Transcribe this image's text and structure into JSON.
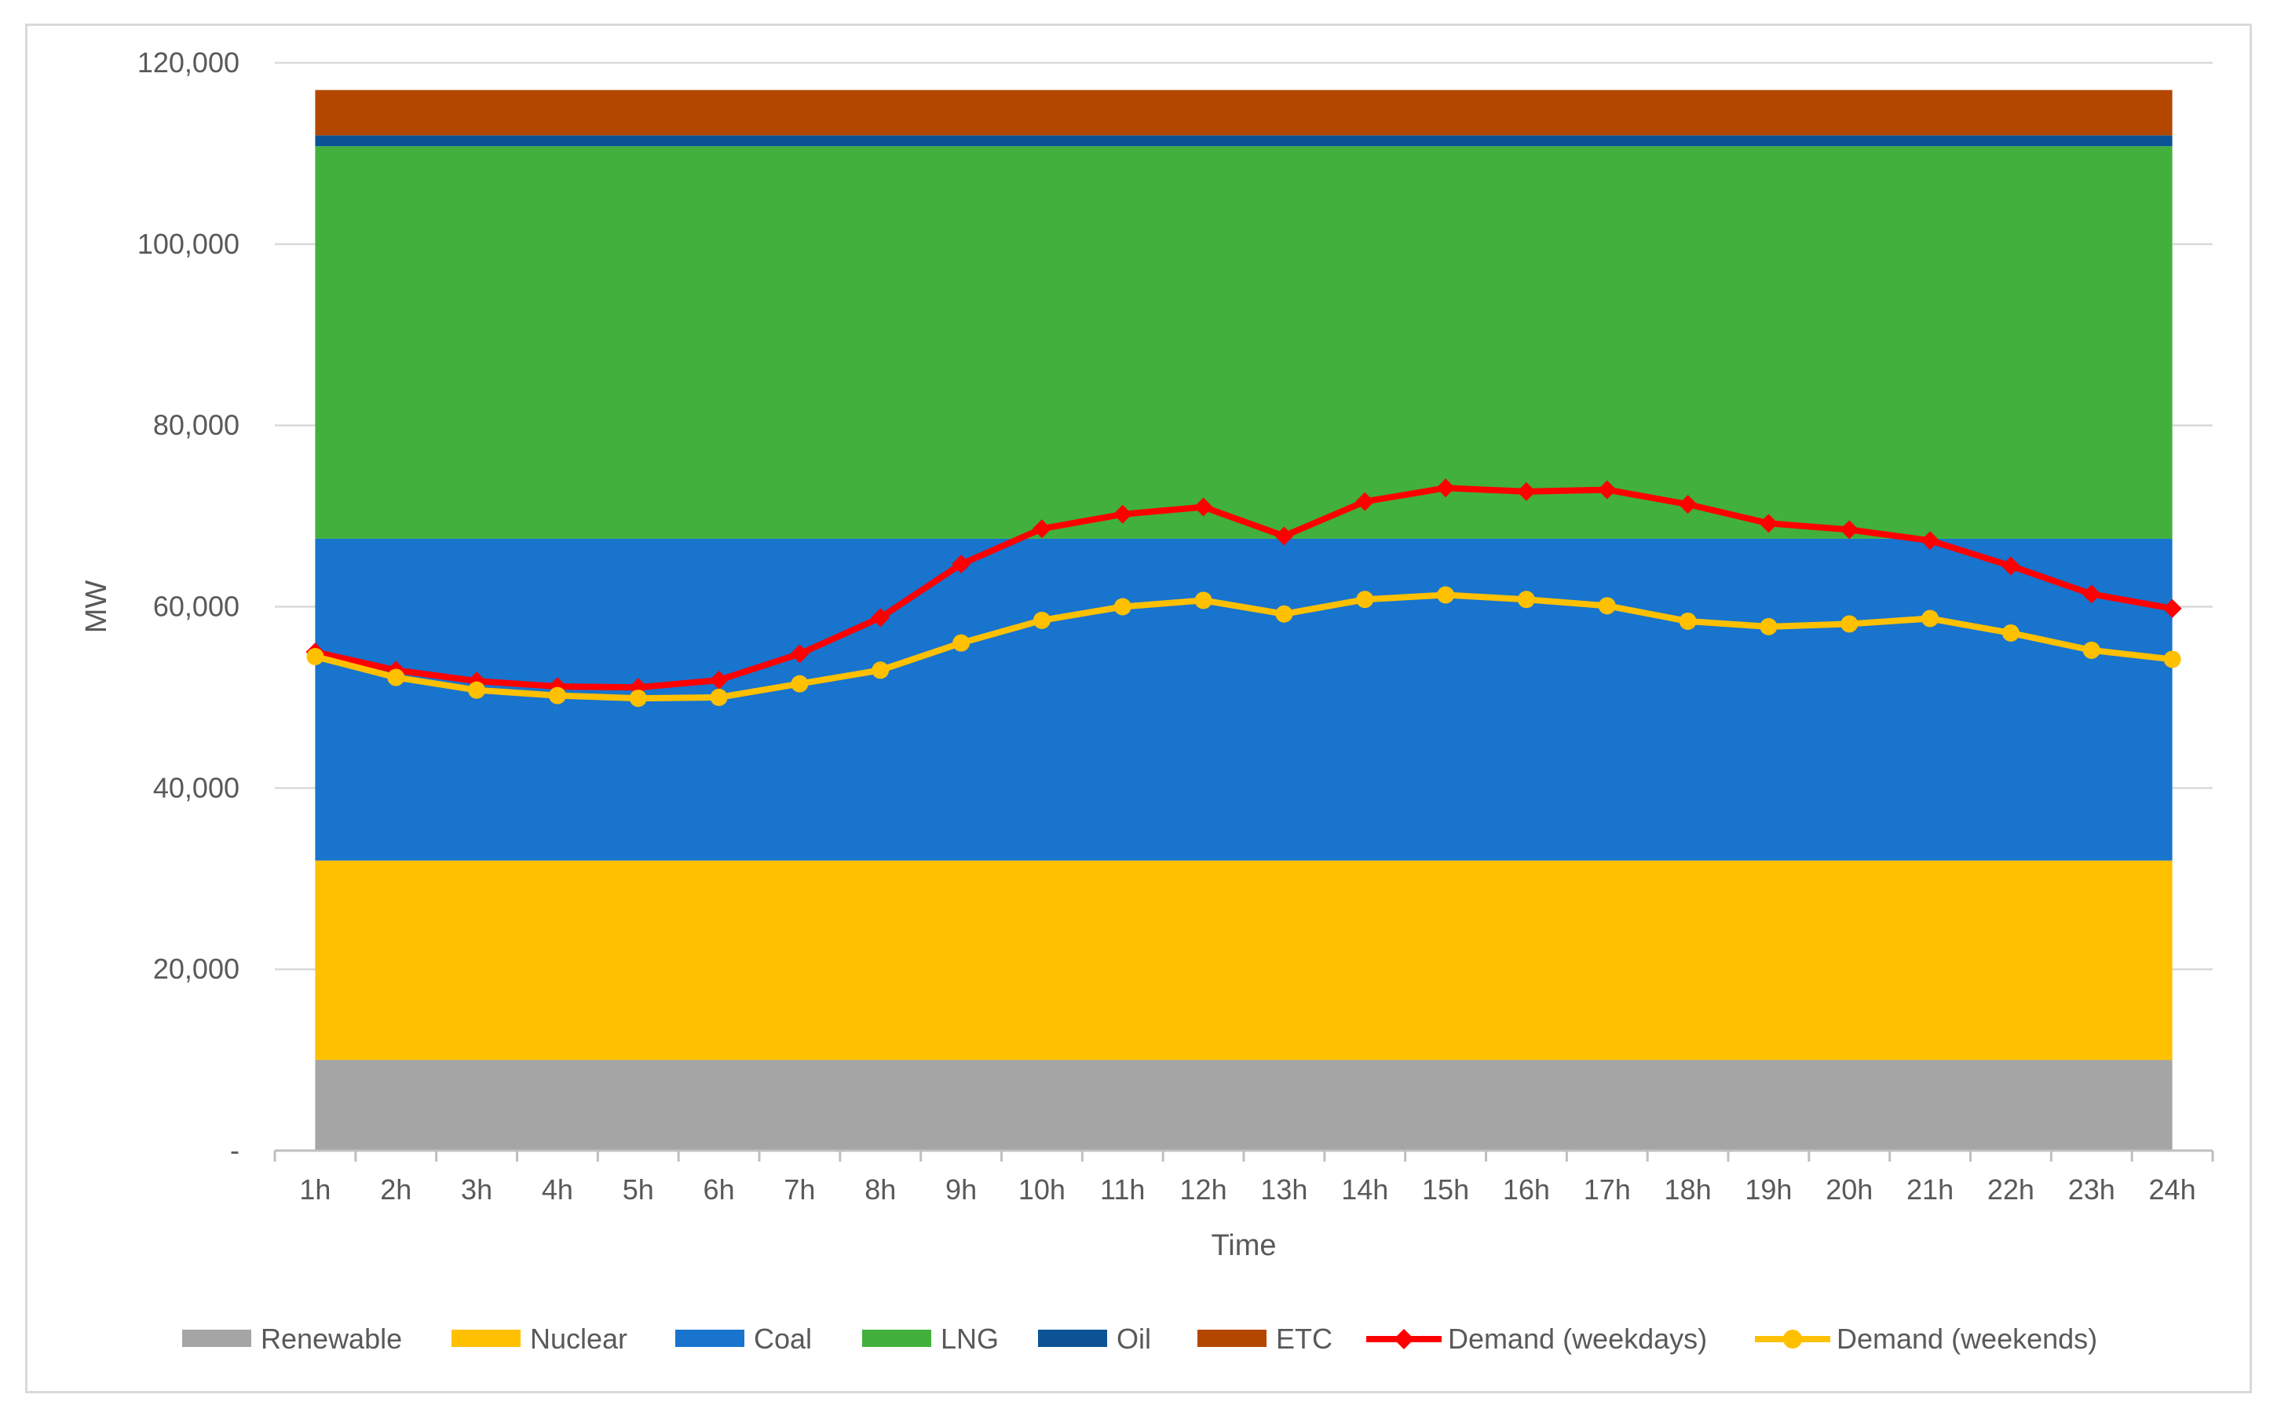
{
  "chart_data": {
    "type": "area",
    "title": "",
    "xlabel": "Time",
    "ylabel": "MW",
    "ylim": [
      0,
      120000
    ],
    "yticks": [
      {
        "value": 0,
        "label": "-"
      },
      {
        "value": 20000,
        "label": "20,000"
      },
      {
        "value": 40000,
        "label": "40,000"
      },
      {
        "value": 60000,
        "label": "60,000"
      },
      {
        "value": 80000,
        "label": "80,000"
      },
      {
        "value": 100000,
        "label": "100,000"
      },
      {
        "value": 120000,
        "label": "120,000"
      }
    ],
    "grid": true,
    "legend_position": "bottom",
    "categories": [
      "1h",
      "2h",
      "3h",
      "4h",
      "5h",
      "6h",
      "7h",
      "8h",
      "9h",
      "10h",
      "11h",
      "12h",
      "13h",
      "14h",
      "15h",
      "16h",
      "17h",
      "18h",
      "19h",
      "20h",
      "21h",
      "22h",
      "23h",
      "24h"
    ],
    "stacked_areas": [
      {
        "name": "Renewable",
        "value": 10000,
        "color": "#a5a5a5"
      },
      {
        "name": "Nuclear",
        "value": 22000,
        "color": "#ffc000"
      },
      {
        "name": "Coal",
        "value": 35500,
        "color": "#1874cd"
      },
      {
        "name": "LNG",
        "value": 43300,
        "color": "#41b03c"
      },
      {
        "name": "Oil",
        "value": 1200,
        "color": "#0b5394"
      },
      {
        "name": "ETC",
        "value": 5000,
        "color": "#b34700"
      }
    ],
    "series": [
      {
        "name": "Demand (weekdays)",
        "color": "#ff0000",
        "marker": "diamond",
        "values": [
          55000,
          53000,
          51800,
          51200,
          51100,
          51900,
          54800,
          58800,
          64700,
          68600,
          70200,
          71000,
          67800,
          71600,
          73100,
          72700,
          72900,
          71300,
          69200,
          68500,
          67300,
          64500,
          61400,
          59800
        ]
      },
      {
        "name": "Demand (weekends)",
        "color": "#ffc000",
        "marker": "circle",
        "values": [
          54500,
          52200,
          50800,
          50200,
          49900,
          50000,
          51500,
          53000,
          56000,
          58500,
          60000,
          60700,
          59200,
          60800,
          61300,
          60800,
          60100,
          58400,
          57800,
          58100,
          58700,
          57100,
          55200,
          54200
        ]
      }
    ]
  }
}
